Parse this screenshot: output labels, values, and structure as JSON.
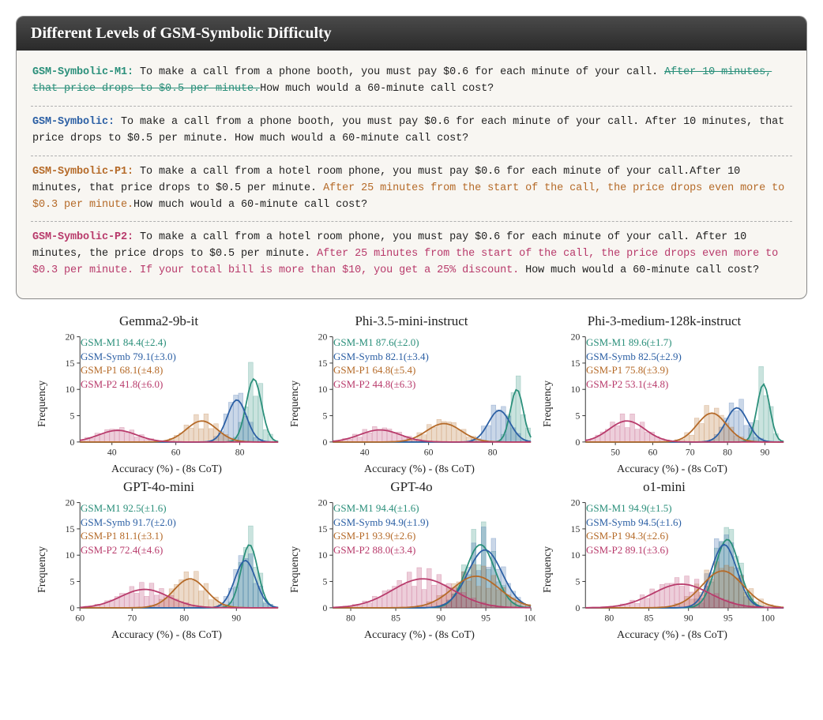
{
  "panel": {
    "title": "Different Levels of GSM-Symbolic Difficulty",
    "background_color": "#f8f6f2",
    "header_bg": "#3a3a3a",
    "examples": [
      {
        "label": "GSM-Symbolic-M1:",
        "label_color": "#2a8f7a",
        "parts": [
          {
            "text": "  To make a call from a phone booth, you must pay $0.6 for each minute of your call. ",
            "color": "#222",
            "strike": false
          },
          {
            "text": "After 10 minutes, that price drops to $0.5 per minute.",
            "color": "#2a8f7a",
            "strike": true
          },
          {
            "text": "How much would a 60-minute call cost?",
            "color": "#222",
            "strike": false
          }
        ]
      },
      {
        "label": "GSM-Symbolic:",
        "label_color": "#2b5fa4",
        "parts": [
          {
            "text": "  To make a call from a phone booth, you must pay $0.6 for each minute of your call. After 10 minutes, that price drops to $0.5 per minute.  How much would a 60-minute call cost?",
            "color": "#222",
            "strike": false
          }
        ]
      },
      {
        "label": "GSM-Symbolic-P1:",
        "label_color": "#b56a28",
        "parts": [
          {
            "text": " To make a call from a hotel room phone, you must pay $0.6 for each minute of your call.After 10 minutes, that price drops to $0.5 per minute.  ",
            "color": "#222",
            "strike": false
          },
          {
            "text": "After 25 minutes from the start of the call, the price drops even more to $0.3 per minute.",
            "color": "#b56a28",
            "strike": false
          },
          {
            "text": "How much would a 60-minute call cost?",
            "color": "#222",
            "strike": false
          }
        ]
      },
      {
        "label": "GSM-Symbolic-P2:",
        "label_color": "#b83a6b",
        "parts": [
          {
            "text": " To make a call from a hotel room phone, you must pay $0.6 for each minute of your call.  After 10 minutes, the price drops to $0.5 per minute.  ",
            "color": "#222",
            "strike": false
          },
          {
            "text": "After 25 minutes from the start of the call, the price drops even more to $0.3 per minute.  If your total bill is more than $10, you get a 25% discount.",
            "color": "#b83a6b",
            "strike": false
          },
          {
            "text": "  How much would a 60-minute call cost?",
            "color": "#222",
            "strike": false
          }
        ]
      }
    ]
  },
  "chart_style": {
    "colors": {
      "m1": "#2a8f7a",
      "symb": "#2b5fa4",
      "p1": "#b56a28",
      "p2": "#b83a6b",
      "axis": "#333333",
      "bar_alpha": 0.25
    },
    "line_width": 1.8,
    "bar_stroke_width": 0.6,
    "title_fontsize": 17,
    "axis_fontsize": 12,
    "ylabel": "Frequency",
    "xlabel": "Accuracy (%) - (8s CoT)",
    "ymax": 20,
    "yticks": [
      0,
      5,
      10,
      15,
      20
    ]
  },
  "charts": [
    {
      "title": "Gemma2-9b-it",
      "xmin": 30,
      "xmax": 92,
      "xticks": [
        40,
        60,
        80
      ],
      "legend": [
        {
          "key": "m1",
          "text": "GSM-M1 84.4(±2.4)"
        },
        {
          "key": "symb",
          "text": "GSM-Symb 79.1(±3.0)"
        },
        {
          "key": "p1",
          "text": "GSM-P1 68.1(±4.8)"
        },
        {
          "key": "p2",
          "text": "GSM-P2 41.8(±6.0)"
        }
      ],
      "dists": [
        {
          "key": "m1",
          "mean": 84.4,
          "sd": 2.4,
          "peak": 12
        },
        {
          "key": "symb",
          "mean": 79.1,
          "sd": 3.0,
          "peak": 8
        },
        {
          "key": "p1",
          "mean": 68.1,
          "sd": 4.8,
          "peak": 4
        },
        {
          "key": "p2",
          "mean": 41.8,
          "sd": 6.0,
          "peak": 2.2
        }
      ]
    },
    {
      "title": "Phi-3.5-mini-instruct",
      "xmin": 30,
      "xmax": 92,
      "xticks": [
        40,
        60,
        80
      ],
      "legend": [
        {
          "key": "m1",
          "text": "GSM-M1 87.6(±2.0)"
        },
        {
          "key": "symb",
          "text": "GSM-Symb 82.1(±3.4)"
        },
        {
          "key": "p1",
          "text": "GSM-P1 64.8(±5.4)"
        },
        {
          "key": "p2",
          "text": "GSM-P2 44.8(±6.3)"
        }
      ],
      "dists": [
        {
          "key": "m1",
          "mean": 87.6,
          "sd": 2.0,
          "peak": 10
        },
        {
          "key": "symb",
          "mean": 82.1,
          "sd": 3.4,
          "peak": 6
        },
        {
          "key": "p1",
          "mean": 64.8,
          "sd": 5.4,
          "peak": 3.5
        },
        {
          "key": "p2",
          "mean": 44.8,
          "sd": 6.3,
          "peak": 2.3
        }
      ]
    },
    {
      "title": "Phi-3-medium-128k-instruct",
      "xmin": 42,
      "xmax": 95,
      "xticks": [
        50,
        60,
        70,
        80,
        90
      ],
      "legend": [
        {
          "key": "m1",
          "text": "GSM-M1 89.6(±1.7)"
        },
        {
          "key": "symb",
          "text": "GSM-Symb 82.5(±2.9)"
        },
        {
          "key": "p1",
          "text": "GSM-P1 75.8(±3.9)"
        },
        {
          "key": "p2",
          "text": "GSM-P2 53.1(±4.8)"
        }
      ],
      "dists": [
        {
          "key": "m1",
          "mean": 89.6,
          "sd": 1.7,
          "peak": 11
        },
        {
          "key": "symb",
          "mean": 82.5,
          "sd": 2.9,
          "peak": 6.5
        },
        {
          "key": "p1",
          "mean": 75.8,
          "sd": 3.9,
          "peak": 5.5
        },
        {
          "key": "p2",
          "mean": 53.1,
          "sd": 4.8,
          "peak": 4
        }
      ]
    },
    {
      "title": "GPT-4o-mini",
      "xmin": 60,
      "xmax": 98,
      "xticks": [
        60,
        70,
        80,
        90
      ],
      "legend": [
        {
          "key": "m1",
          "text": "GSM-M1 92.5(±1.6)"
        },
        {
          "key": "symb",
          "text": "GSM-Symb 91.7(±2.0)"
        },
        {
          "key": "p1",
          "text": "GSM-P1 81.1(±3.1)"
        },
        {
          "key": "p2",
          "text": "GSM-P2 72.4(±4.6)"
        }
      ],
      "dists": [
        {
          "key": "m1",
          "mean": 92.5,
          "sd": 1.6,
          "peak": 12
        },
        {
          "key": "symb",
          "mean": 91.7,
          "sd": 2.0,
          "peak": 9
        },
        {
          "key": "p1",
          "mean": 81.1,
          "sd": 3.1,
          "peak": 5.5
        },
        {
          "key": "p2",
          "mean": 72.4,
          "sd": 4.6,
          "peak": 3.5
        }
      ]
    },
    {
      "title": "GPT-4o",
      "xmin": 78,
      "xmax": 100,
      "xticks": [
        80,
        85,
        90,
        95,
        100
      ],
      "legend": [
        {
          "key": "m1",
          "text": "GSM-M1 94.4(±1.6)"
        },
        {
          "key": "symb",
          "text": "GSM-Symb 94.9(±1.9)"
        },
        {
          "key": "p1",
          "text": "GSM-P1 93.9(±2.6)"
        },
        {
          "key": "p2",
          "text": "GSM-P2 88.0(±3.4)"
        }
      ],
      "dists": [
        {
          "key": "m1",
          "mean": 94.4,
          "sd": 1.6,
          "peak": 12
        },
        {
          "key": "symb",
          "mean": 94.9,
          "sd": 1.9,
          "peak": 11
        },
        {
          "key": "p1",
          "mean": 93.9,
          "sd": 2.6,
          "peak": 6
        },
        {
          "key": "p2",
          "mean": 88.0,
          "sd": 3.4,
          "peak": 5.5
        }
      ]
    },
    {
      "title": "o1-mini",
      "xmin": 77,
      "xmax": 102,
      "xticks": [
        80,
        85,
        90,
        95,
        100
      ],
      "legend": [
        {
          "key": "m1",
          "text": "GSM-M1 94.9(±1.5)"
        },
        {
          "key": "symb",
          "text": "GSM-Symb 94.5(±1.6)"
        },
        {
          "key": "p1",
          "text": "GSM-P1 94.3(±2.6)"
        },
        {
          "key": "p2",
          "text": "GSM-P2 89.1(±3.6)"
        }
      ],
      "dists": [
        {
          "key": "m1",
          "mean": 94.9,
          "sd": 1.5,
          "peak": 13
        },
        {
          "key": "symb",
          "mean": 94.5,
          "sd": 1.6,
          "peak": 12
        },
        {
          "key": "p1",
          "mean": 94.3,
          "sd": 2.6,
          "peak": 7
        },
        {
          "key": "p2",
          "mean": 89.1,
          "sd": 3.6,
          "peak": 4.5
        }
      ]
    }
  ]
}
